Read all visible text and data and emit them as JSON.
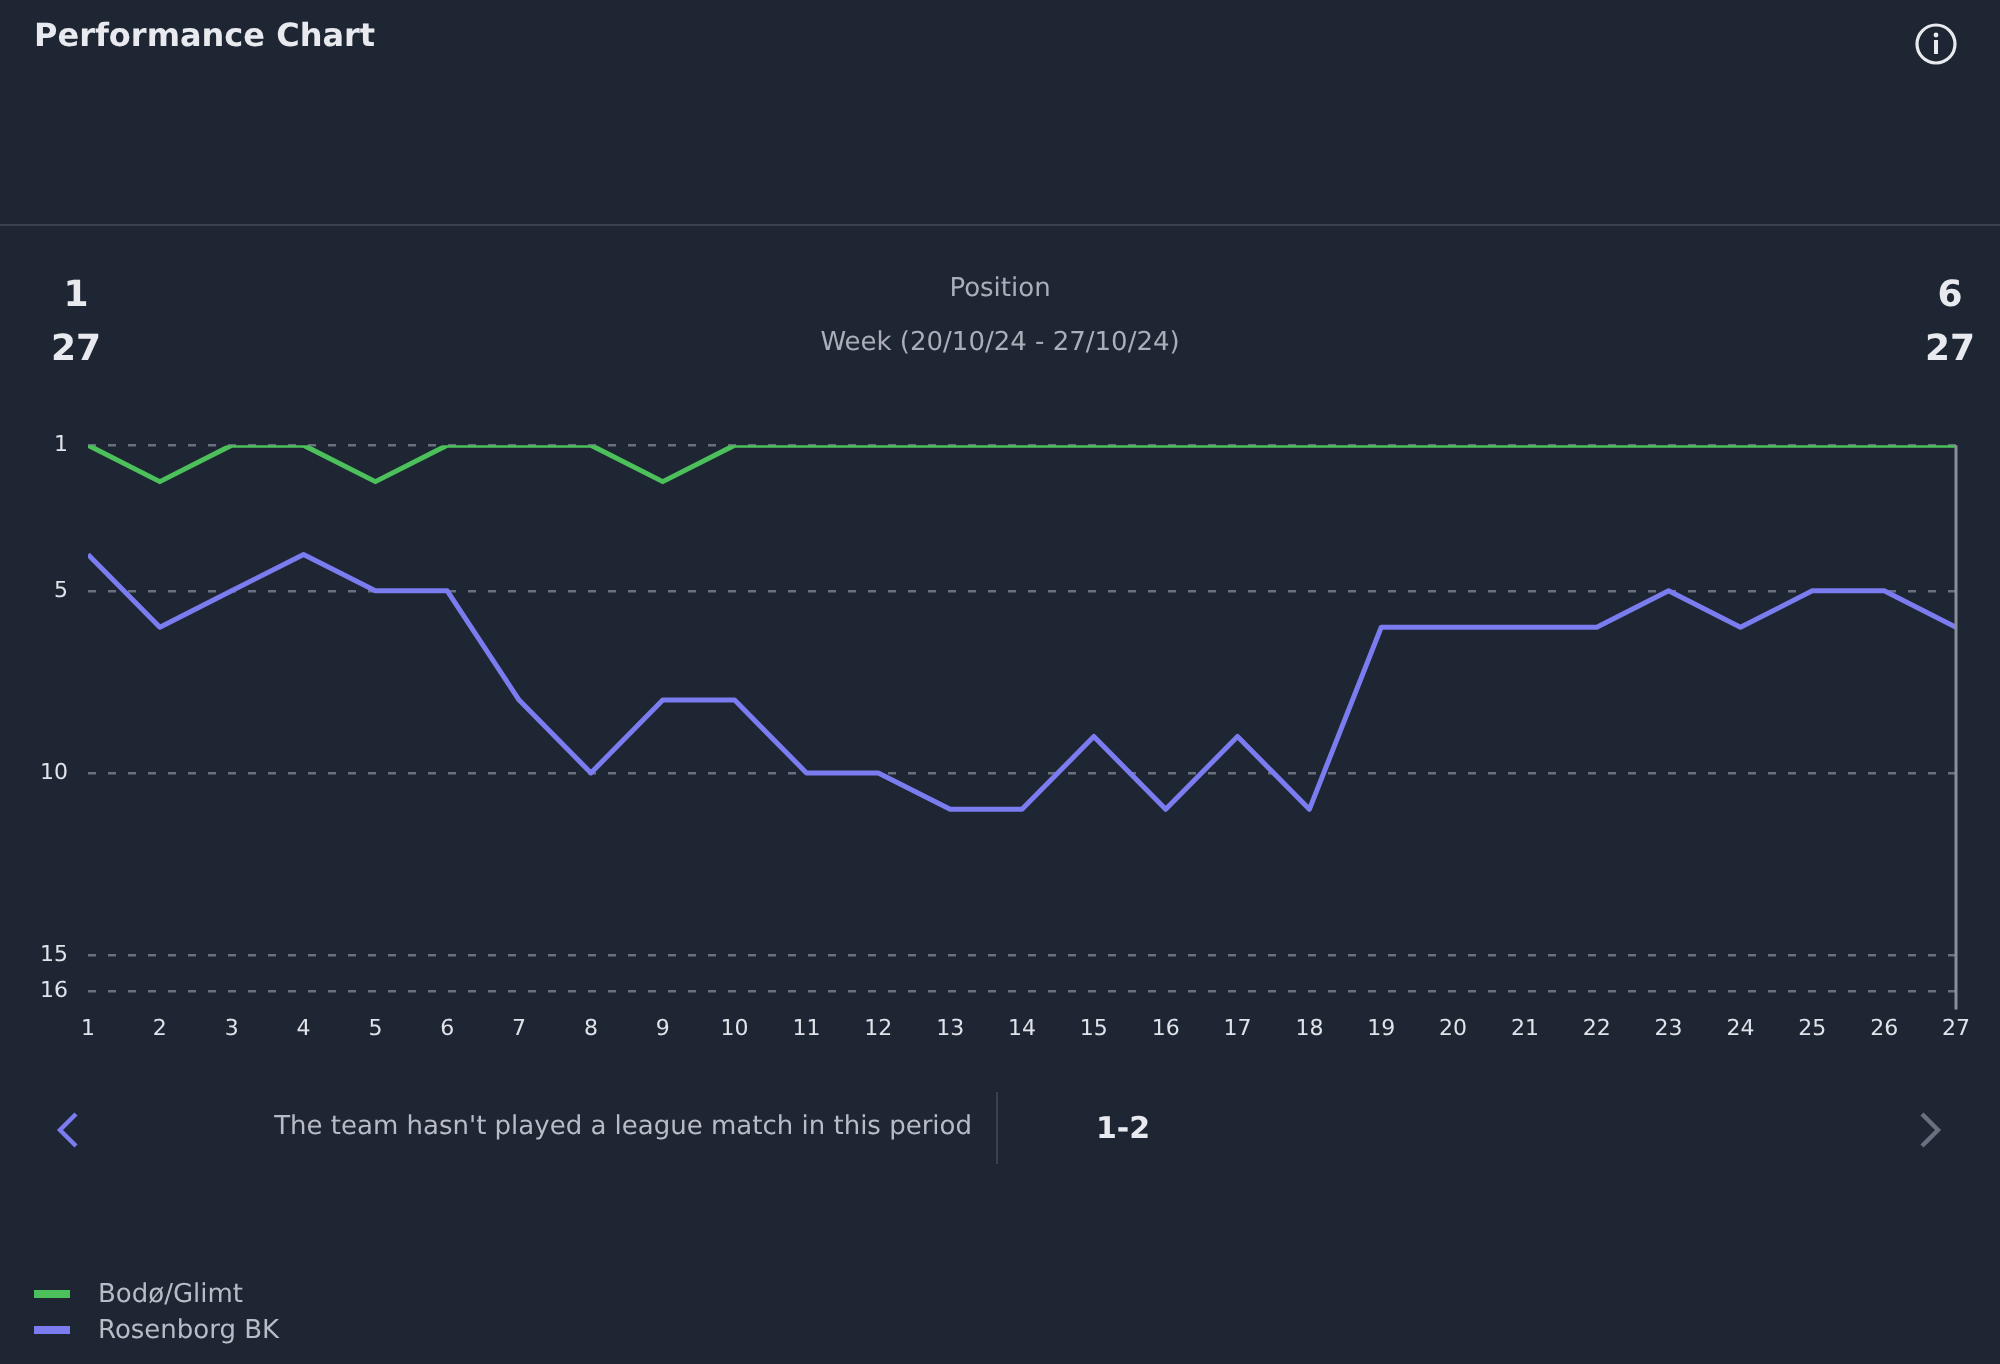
{
  "chart_data": {
    "type": "line",
    "title": "Performance Chart",
    "ylabel": "Position",
    "xlabel": "Week (20/10/24 - 27/10/24)",
    "x": [
      1,
      2,
      3,
      4,
      5,
      6,
      7,
      8,
      9,
      10,
      11,
      12,
      13,
      14,
      15,
      16,
      17,
      18,
      19,
      20,
      21,
      22,
      23,
      24,
      25,
      26,
      27
    ],
    "series": [
      {
        "name": "Bodø/Glimt",
        "color": "#4cc05a",
        "values": [
          1,
          2,
          1,
          1,
          2,
          1,
          1,
          1,
          2,
          1,
          1,
          1,
          1,
          1,
          1,
          1,
          1,
          1,
          1,
          1,
          1,
          1,
          1,
          1,
          1,
          1,
          1
        ]
      },
      {
        "name": "Rosenborg BK",
        "color": "#7b7cf0",
        "values": [
          4,
          6,
          5,
          4,
          5,
          5,
          8,
          10,
          8,
          8,
          10,
          10,
          11,
          11,
          9,
          11,
          9,
          11,
          6,
          6,
          6,
          6,
          5,
          6,
          5,
          5,
          6
        ]
      }
    ],
    "xlim": [
      1,
      27
    ],
    "xticks": [
      1,
      2,
      3,
      4,
      5,
      6,
      7,
      8,
      9,
      10,
      11,
      12,
      13,
      14,
      15,
      16,
      17,
      18,
      19,
      20,
      21,
      22,
      23,
      24,
      25,
      26,
      27
    ],
    "ylim": [
      16.5,
      1
    ],
    "yticks": [
      1,
      5,
      10,
      15,
      16
    ],
    "grid": "y",
    "legend": "bottom left",
    "marker": "none",
    "line_style": "solid",
    "ref_lines": [
      {
        "axis": "x",
        "value": 27,
        "color": "#8a8f99"
      }
    ],
    "annotations": [
      "1",
      "27",
      "6",
      "27",
      "The team hasn't played a league match in this period",
      "1-2"
    ]
  }
}
